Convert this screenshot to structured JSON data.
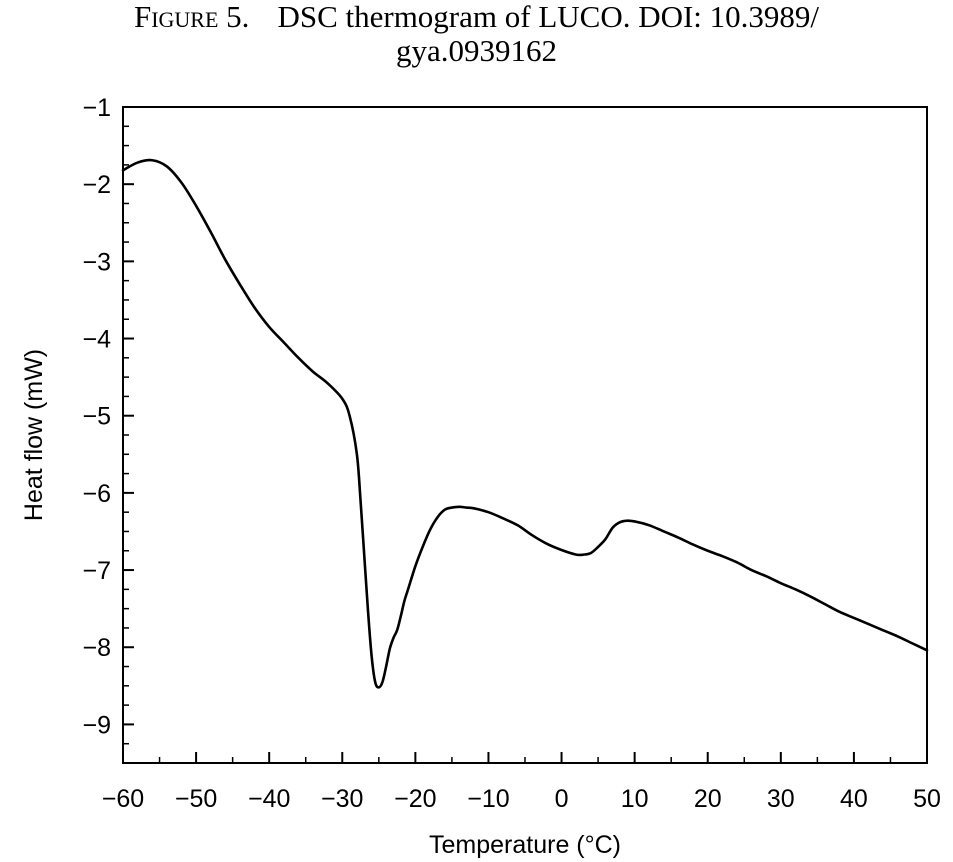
{
  "caption": {
    "label": "Figure 5.",
    "line1": "DSC thermogram of LUCO. DOI: 10.3989/",
    "line2": "gya.0939162"
  },
  "chart_data": {
    "type": "line",
    "title": "",
    "xlabel": "Temperature (°C)",
    "ylabel": "Heat flow (mW)",
    "xlim": [
      -60,
      50
    ],
    "ylim": [
      -9.5,
      -1
    ],
    "xticks": [
      -60,
      -50,
      -40,
      -30,
      -20,
      -10,
      0,
      10,
      20,
      30,
      40,
      50
    ],
    "xtick_labels": [
      "−60",
      "−50",
      "−40",
      "−30",
      "−20",
      "−10",
      "0",
      "10",
      "20",
      "30",
      "40",
      "50"
    ],
    "yticks": [
      -1,
      -2,
      -3,
      -4,
      -5,
      -6,
      -7,
      -8,
      -9
    ],
    "ytick_labels": [
      "−1",
      "−2",
      "−3",
      "−4",
      "−5",
      "−6",
      "−7",
      "−8",
      "−9"
    ],
    "grid": false,
    "line_color": "#000000",
    "series": [
      {
        "x": [
          -60,
          -58,
          -56,
          -54,
          -52,
          -50,
          -48,
          -46,
          -44,
          -42,
          -40,
          -38,
          -36,
          -34,
          -32,
          -30,
          -29,
          -28,
          -27.5,
          -27,
          -26.5,
          -26,
          -25.5,
          -25,
          -24.5,
          -24,
          -23.5,
          -23,
          -22.5,
          -22,
          -21.5,
          -21,
          -20,
          -19,
          -18,
          -17,
          -16,
          -15,
          -14,
          -13,
          -12,
          -10,
          -8,
          -6,
          -4,
          -2,
          0,
          2,
          3,
          4,
          5,
          6,
          7,
          8,
          9,
          10,
          12,
          14,
          16,
          18,
          20,
          22,
          24,
          26,
          28,
          30,
          32,
          34,
          36,
          38,
          40,
          42,
          44,
          46,
          48,
          50
        ],
        "y": [
          -1.82,
          -1.72,
          -1.69,
          -1.77,
          -1.98,
          -2.28,
          -2.62,
          -2.98,
          -3.3,
          -3.6,
          -3.85,
          -4.05,
          -4.25,
          -4.43,
          -4.58,
          -4.78,
          -5.0,
          -5.5,
          -6.1,
          -6.8,
          -7.5,
          -8.1,
          -8.45,
          -8.52,
          -8.45,
          -8.25,
          -8.02,
          -7.88,
          -7.78,
          -7.6,
          -7.4,
          -7.25,
          -6.95,
          -6.7,
          -6.48,
          -6.32,
          -6.22,
          -6.19,
          -6.18,
          -6.19,
          -6.2,
          -6.25,
          -6.33,
          -6.42,
          -6.55,
          -6.66,
          -6.74,
          -6.8,
          -6.8,
          -6.78,
          -6.7,
          -6.6,
          -6.45,
          -6.38,
          -6.36,
          -6.37,
          -6.42,
          -6.5,
          -6.58,
          -6.67,
          -6.75,
          -6.82,
          -6.9,
          -7.0,
          -7.08,
          -7.17,
          -7.25,
          -7.34,
          -7.44,
          -7.54,
          -7.62,
          -7.7,
          -7.78,
          -7.86,
          -7.95,
          -8.04
        ]
      }
    ]
  }
}
